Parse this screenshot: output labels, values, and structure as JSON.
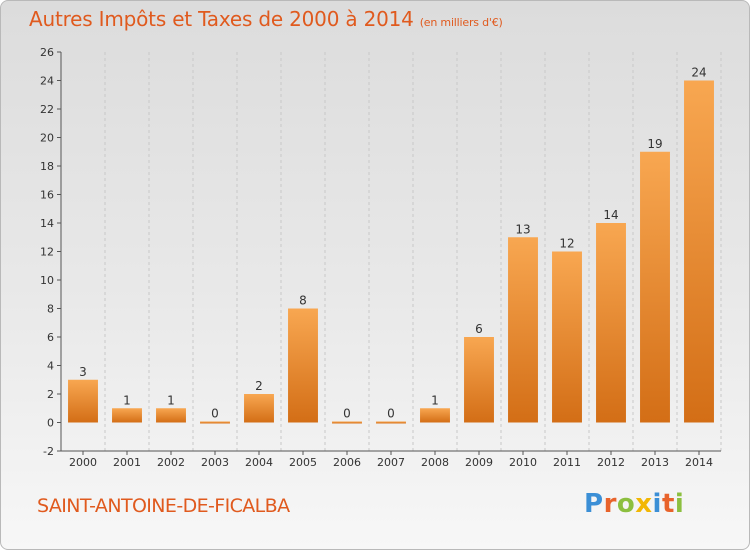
{
  "colors": {
    "accent": "#e05a1e",
    "bar_light": "#f8a751",
    "bar_dark": "#d36e16",
    "axis": "#555555",
    "grid": "#c8c8c8"
  },
  "header": {
    "title": "Autres Impôts et Taxes de 2000 à 2014",
    "subtitle": "(en milliers d'€)"
  },
  "footer": {
    "town": "SAINT-ANTOINE-DE-FICALBA",
    "logo": "Proxiti"
  },
  "chart_data": {
    "type": "bar",
    "title": "Autres Impôts et Taxes de 2000 à 2014",
    "subtitle": "(en milliers d'€)",
    "xlabel": "",
    "ylabel": "",
    "categories": [
      "2000",
      "2001",
      "2002",
      "2003",
      "2004",
      "2005",
      "2006",
      "2007",
      "2008",
      "2009",
      "2010",
      "2011",
      "2012",
      "2013",
      "2014"
    ],
    "values": [
      3,
      1,
      1,
      0,
      2,
      8,
      0,
      0,
      1,
      6,
      13,
      12,
      14,
      19,
      24
    ],
    "ylim": [
      -2,
      26
    ],
    "yticks": [
      -2,
      0,
      2,
      4,
      6,
      8,
      10,
      12,
      14,
      16,
      18,
      20,
      22,
      24,
      26
    ],
    "grid": "vertical dashed lines between categories",
    "legend": "none"
  }
}
